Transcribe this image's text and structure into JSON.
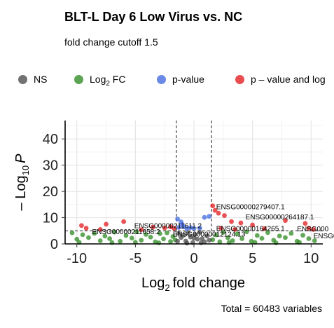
{
  "chart_data": {
    "type": "scatter",
    "title": "BLT-L Day 6 Low Virus vs. NC",
    "subtitle": "fold change cutoff 1.5",
    "xlabel": "fold change",
    "xlabel_prefix": "Log",
    "xlabel_sub": "2",
    "ylabel_prefix": "– Log",
    "ylabel_sub": "10",
    "ylabel_var": "P",
    "xlim": [
      -11,
      11
    ],
    "ylim": [
      0,
      47
    ],
    "x_ticks": [
      -10,
      -5,
      0,
      5,
      10
    ],
    "y_ticks": [
      0,
      10,
      20,
      30,
      40
    ],
    "fc_cutoff": 1.5,
    "p_cutoff_neglog10": 5,
    "caption": "Total = 60483 variables",
    "legend_position": "top",
    "grid": true,
    "legend": [
      {
        "key": "NS",
        "label": "NS",
        "color": "#4a4a4a"
      },
      {
        "key": "log2fc",
        "label_prefix": "Log",
        "label_sub": "2",
        "label_suffix": " FC",
        "color": "#2e8b22"
      },
      {
        "key": "pvalue",
        "label": "p-value",
        "color": "#4169e1"
      },
      {
        "key": "both",
        "label": "p – value and log",
        "color": "#e31a1c"
      }
    ],
    "series": [
      {
        "key": "both",
        "points": [
          [
            1.6,
            14.5
          ],
          [
            1.8,
            12.8
          ],
          [
            2.1,
            11.7
          ],
          [
            2.6,
            10.8
          ],
          [
            3.2,
            8.5
          ],
          [
            4.0,
            8.0
          ],
          [
            5.0,
            7.2
          ],
          [
            7.8,
            8.9
          ],
          [
            9.5,
            7.8
          ],
          [
            9.8,
            6.0
          ],
          [
            10.2,
            5.5
          ],
          [
            2.3,
            6.0
          ],
          [
            3.5,
            5.5
          ],
          [
            6.0,
            5.8
          ],
          [
            -6.0,
            8.5
          ],
          [
            -7.5,
            7.5
          ],
          [
            -9.6,
            7.0
          ],
          [
            -9.2,
            6.0
          ],
          [
            -8.0,
            5.5
          ],
          [
            -4.5,
            5.4
          ],
          [
            -2.5,
            6.1
          ],
          [
            -3.5,
            6.4
          ],
          [
            -1.7,
            5.9
          ],
          [
            -2.0,
            6.5
          ]
        ]
      },
      {
        "key": "pvalue",
        "points": [
          [
            -1.4,
            9.5
          ],
          [
            -1.1,
            8.4
          ],
          [
            -1.0,
            7.4
          ],
          [
            -0.9,
            6.5
          ],
          [
            -0.6,
            5.8
          ],
          [
            -0.3,
            6.2
          ],
          [
            0.0,
            5.9
          ],
          [
            0.5,
            6.0
          ],
          [
            0.9,
            10.1
          ],
          [
            1.3,
            10.5
          ],
          [
            -1.3,
            6.3
          ]
        ]
      },
      {
        "key": "log2fc",
        "points": [
          [
            -10.4,
            4.2
          ],
          [
            -10.0,
            1.8
          ],
          [
            -9.5,
            3.5
          ],
          [
            -9.0,
            2.4
          ],
          [
            -8.5,
            4.0
          ],
          [
            -8.0,
            1.2
          ],
          [
            -7.6,
            3.0
          ],
          [
            -7.2,
            2.0
          ],
          [
            -6.8,
            4.5
          ],
          [
            -6.3,
            1.0
          ],
          [
            -5.8,
            3.2
          ],
          [
            -5.3,
            2.2
          ],
          [
            -4.9,
            4.6
          ],
          [
            -4.5,
            1.4
          ],
          [
            -4.1,
            3.6
          ],
          [
            -3.7,
            2.6
          ],
          [
            -3.3,
            0.8
          ],
          [
            -2.9,
            3.9
          ],
          [
            -2.6,
            1.9
          ],
          [
            -2.3,
            4.2
          ],
          [
            -2.0,
            0.9
          ],
          [
            -1.8,
            2.8
          ],
          [
            -1.6,
            1.5
          ],
          [
            1.6,
            1.6
          ],
          [
            1.9,
            3.4
          ],
          [
            2.2,
            0.8
          ],
          [
            2.5,
            4.4
          ],
          [
            2.9,
            2.3
          ],
          [
            3.3,
            1.2
          ],
          [
            3.7,
            3.8
          ],
          [
            4.1,
            2.0
          ],
          [
            4.5,
            4.6
          ],
          [
            4.9,
            1.0
          ],
          [
            5.4,
            3.2
          ],
          [
            5.8,
            2.1
          ],
          [
            6.3,
            4.3
          ],
          [
            6.8,
            1.4
          ],
          [
            7.3,
            3.0
          ],
          [
            7.8,
            2.4
          ],
          [
            8.3,
            4.0
          ],
          [
            8.8,
            1.0
          ],
          [
            9.3,
            3.3
          ],
          [
            9.8,
            2.0
          ],
          [
            10.3,
            1.2
          ],
          [
            -9.8,
            0.6
          ],
          [
            -7.0,
            0.5
          ],
          [
            -5.0,
            0.6
          ],
          [
            -3.0,
            0.4
          ],
          [
            3.0,
            0.5
          ],
          [
            5.2,
            0.6
          ],
          [
            7.0,
            0.4
          ],
          [
            9.0,
            0.6
          ]
        ]
      },
      {
        "key": "NS",
        "points": [
          [
            -1.3,
            4.0
          ],
          [
            -1.1,
            2.4
          ],
          [
            -0.9,
            3.3
          ],
          [
            -0.7,
            1.1
          ],
          [
            -0.5,
            4.2
          ],
          [
            -0.3,
            2.6
          ],
          [
            -0.1,
            0.5
          ],
          [
            0.1,
            3.5
          ],
          [
            0.3,
            1.8
          ],
          [
            0.5,
            4.4
          ],
          [
            0.7,
            2.0
          ],
          [
            0.9,
            0.8
          ],
          [
            1.1,
            3.0
          ],
          [
            1.3,
            1.4
          ],
          [
            -1.4,
            1.0
          ],
          [
            0.0,
            2.2
          ],
          [
            -0.6,
            0.3
          ],
          [
            0.6,
            0.4
          ]
        ]
      }
    ],
    "labels": [
      {
        "text": "ENSG00000279407.1",
        "x": 1.9,
        "y": 14.0
      },
      {
        "text": "ENSG00000264187.1",
        "x": 4.4,
        "y": 10.2
      },
      {
        "text": "ENSG00000211611.2",
        "x": -5.1,
        "y": 6.8
      },
      {
        "text": "ENSG00000164265.1",
        "x": 1.9,
        "y": 5.8
      },
      {
        "text": "ENSG00000211658.2",
        "x": -8.7,
        "y": 4.5
      },
      {
        "text": "ENSG00000012124.13",
        "x": -1.8,
        "y": 3.6
      },
      {
        "text": "ENSG000",
        "x": 8.8,
        "y": 5.6
      },
      {
        "text": "ENSG00",
        "x": 10.2,
        "y": 3.0
      }
    ]
  }
}
